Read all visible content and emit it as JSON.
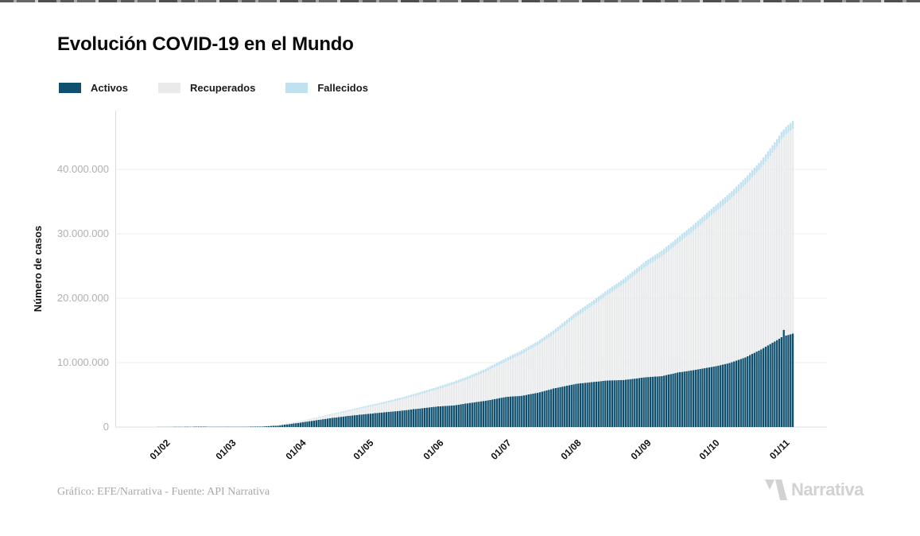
{
  "header": {
    "title": "Evolución COVID-19 en el Mundo"
  },
  "legend": {
    "items": [
      {
        "label": "Activos",
        "color": "#0f506f"
      },
      {
        "label": "Recuperados",
        "color": "#e9eaeb"
      },
      {
        "label": "Fallecidos",
        "color": "#bfe1f0"
      }
    ]
  },
  "footer": {
    "credit": "Gráfico: EFE/Narrativa - Fuente: API Narrativa",
    "logo_text": "Narrativa",
    "logo_icon": "narrativa-n-icon",
    "logo_color": "#d2d2d2"
  },
  "colors": {
    "grid": "#ececec",
    "axis": "#dddddd",
    "ytick_text": "#b0b0b0",
    "xtick_text": "#111111",
    "title_text": "#0a0a0a",
    "footer_text": "#a8a8a8"
  },
  "chart_data": {
    "type": "bar",
    "stacked": true,
    "title": "Evolución COVID-19 en el Mundo",
    "xlabel": "",
    "ylabel": "Número de casos",
    "ylim": [
      0,
      47500000
    ],
    "grid": true,
    "legend_position": "top-left",
    "series_names": [
      "Activos",
      "Recuperados",
      "Fallecidos"
    ],
    "yticks": [
      {
        "value": 0,
        "label": "0"
      },
      {
        "value": 10000000,
        "label": "10.000.000"
      },
      {
        "value": 20000000,
        "label": "20.000.000"
      },
      {
        "value": 30000000,
        "label": "30.000.000"
      },
      {
        "value": 40000000,
        "label": "40.000.000"
      }
    ],
    "xticks": [
      {
        "day": 10,
        "label": "01/02"
      },
      {
        "day": 39,
        "label": "01/03"
      },
      {
        "day": 70,
        "label": "01/04"
      },
      {
        "day": 100,
        "label": "01/05"
      },
      {
        "day": 131,
        "label": "01/06"
      },
      {
        "day": 161,
        "label": "01/07"
      },
      {
        "day": 192,
        "label": "01/08"
      },
      {
        "day": 223,
        "label": "01/09"
      },
      {
        "day": 253,
        "label": "01/10"
      },
      {
        "day": 284,
        "label": "01/11"
      }
    ],
    "samples": {
      "columns": [
        "day",
        "date",
        "activos",
        "recuperados",
        "fallecidos"
      ],
      "rows": [
        [
          0,
          "22/01",
          510,
          28,
          17
        ],
        [
          10,
          "01/02",
          11414,
          284,
          259
        ],
        [
          17,
          "08/02",
          33269,
          2920,
          813
        ],
        [
          24,
          "15/02",
          57636,
          9700,
          1700
        ],
        [
          31,
          "22/02",
          52000,
          23000,
          2500
        ],
        [
          39,
          "01/03",
          42000,
          42700,
          3000
        ],
        [
          46,
          "08/03",
          44300,
          62000,
          3800
        ],
        [
          53,
          "15/03",
          84400,
          76000,
          6500
        ],
        [
          60,
          "22/03",
          224000,
          98000,
          14600
        ],
        [
          70,
          "01/04",
          692000,
          193000,
          47200
        ],
        [
          77,
          "08/04",
          1062000,
          330000,
          88500
        ],
        [
          84,
          "15/04",
          1414000,
          512000,
          134000
        ],
        [
          91,
          "22/04",
          1728000,
          709000,
          183000
        ],
        [
          100,
          "01/05",
          2051000,
          1070000,
          239000
        ],
        [
          107,
          "08/05",
          2296000,
          1340000,
          274000
        ],
        [
          114,
          "15/05",
          2516000,
          1710000,
          303000
        ],
        [
          121,
          "22/05",
          2815000,
          2050000,
          335000
        ],
        [
          131,
          "01/06",
          3204000,
          2690000,
          376000
        ],
        [
          138,
          "08/06",
          3365000,
          3300000,
          405000
        ],
        [
          145,
          "15/06",
          3745000,
          3800000,
          435000
        ],
        [
          152,
          "22/06",
          4088000,
          4500000,
          472000
        ],
        [
          161,
          "01/07",
          4683000,
          5500000,
          517000
        ],
        [
          168,
          "08/07",
          4854000,
          6500000,
          546000
        ],
        [
          175,
          "15/07",
          5320000,
          7400000,
          580000
        ],
        [
          182,
          "22/07",
          5981000,
          8400000,
          619000
        ],
        [
          192,
          "01/08",
          6715000,
          10400000,
          685000
        ],
        [
          199,
          "08/08",
          6977000,
          11800000,
          723000
        ],
        [
          206,
          "15/08",
          7239000,
          13300000,
          761000
        ],
        [
          213,
          "22/08",
          7299000,
          14900000,
          801000
        ],
        [
          223,
          "01/09",
          7741000,
          17200000,
          860000
        ],
        [
          230,
          "08/09",
          7906000,
          18600000,
          894000
        ],
        [
          237,
          "15/09",
          8467000,
          20000000,
          933000
        ],
        [
          244,
          "22/09",
          8833000,
          21600000,
          967000
        ],
        [
          253,
          "01/10",
          9380000,
          23800000,
          1020000
        ],
        [
          260,
          "08/10",
          9940000,
          25300000,
          1060000
        ],
        [
          267,
          "15/10",
          10810000,
          26800000,
          1090000
        ],
        [
          274,
          "22/10",
          12070000,
          28200000,
          1130000
        ],
        [
          281,
          "29/10",
          13500000,
          30000000,
          1180000
        ],
        [
          283,
          "31/10",
          13950000,
          30700000,
          1195000
        ],
        [
          284,
          "01/11",
          15100000,
          29900000,
          1200000
        ],
        [
          285,
          "02/11",
          14200000,
          31200000,
          1205000
        ],
        [
          288,
          "05/11",
          14500000,
          31800000,
          1215000
        ]
      ]
    }
  }
}
